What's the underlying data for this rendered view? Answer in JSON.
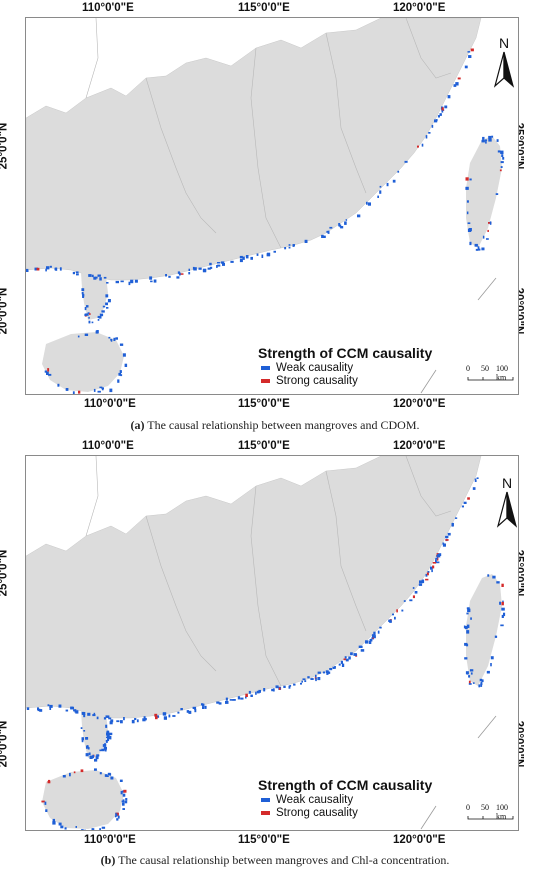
{
  "panels": [
    {
      "id": "a",
      "top_labels": [
        "110°0'0\"E",
        "115°0'0\"E",
        "120°0'0\"E"
      ],
      "bottom_labels": [
        "110°0'0\"E",
        "115°0'0\"E",
        "120°0'0\"E"
      ],
      "left_labels": [
        "25°0'0\"N",
        "20°0'0\"N"
      ],
      "right_labels": [
        "25°0'0\"N",
        "20°0'0\"N"
      ],
      "legend_title": "Strength of CCM causality",
      "legend_items": [
        {
          "label": "Weak causality",
          "color": "#1f5fd6"
        },
        {
          "label": "Strong causality",
          "color": "#d42a2a"
        }
      ],
      "north_label": "N",
      "scale_labels": [
        "0",
        "50",
        "100 km"
      ],
      "caption_tag": "(a)",
      "caption_text": " The causal relationship between mangroves and CDOM."
    },
    {
      "id": "b",
      "top_labels": [
        "110°0'0\"E",
        "115°0'0\"E",
        "120°0'0\"E"
      ],
      "bottom_labels": [
        "110°0'0\"E",
        "115°0'0\"E",
        "120°0'0\"E"
      ],
      "left_labels": [
        "25°0'0\"N",
        "20°0'0\"N"
      ],
      "right_labels": [
        "25°0'0\"N",
        "20°0'0\"N"
      ],
      "legend_title": "Strength of CCM causality",
      "legend_items": [
        {
          "label": "Weak causality",
          "color": "#1f5fd6"
        },
        {
          "label": "Strong causality",
          "color": "#d42a2a"
        }
      ],
      "north_label": "N",
      "scale_labels": [
        "0",
        "50",
        "100 km"
      ],
      "caption_tag": "(b)",
      "caption_text": " The causal relationship between mangroves and Chl-a concentration."
    }
  ],
  "colors": {
    "land": "#dcdcdc",
    "border": "#b8b8b8",
    "weak": "#1f5fd6",
    "strong": "#d42a2a"
  }
}
